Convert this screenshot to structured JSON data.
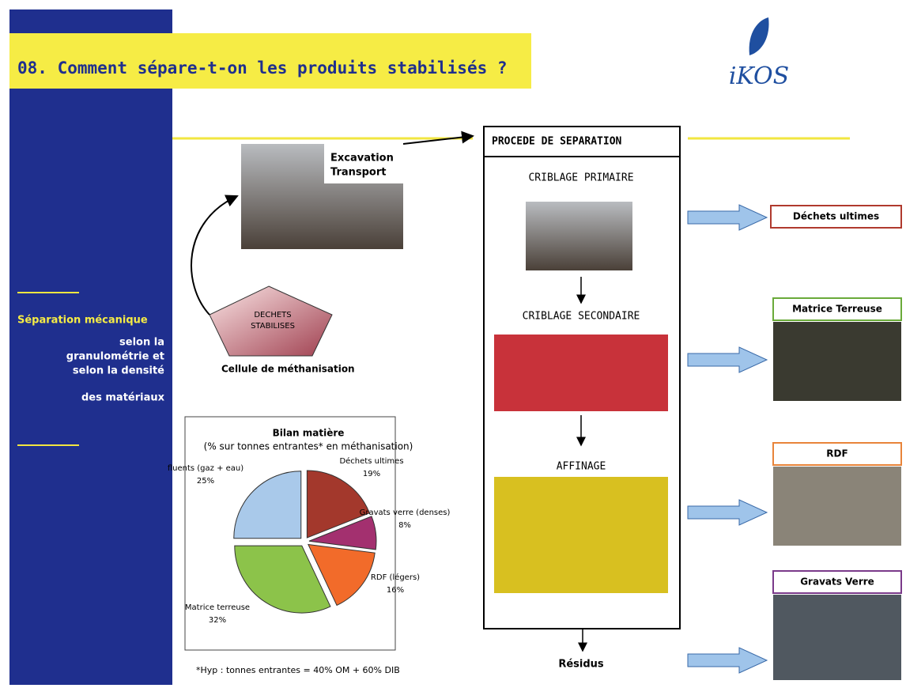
{
  "header": {
    "title": "08. Comment sépare-t-on les produits stabilisés ?",
    "logo": "iKOS"
  },
  "sidebar": {
    "heading": "Séparation mécanique",
    "lines": [
      "selon la",
      "granulométrie et",
      "selon la densité",
      "des matériaux"
    ]
  },
  "excavation": {
    "lines": [
      "Excavation",
      "Transport"
    ]
  },
  "pentagon": {
    "lines": [
      "DECHETS",
      "STABILISES"
    ]
  },
  "cell_label": "Cellule de méthanisation",
  "chart_data": {
    "type": "pie",
    "title": "Bilan matière",
    "subtitle": "(% sur tonnes entrantes* en méthanisation)",
    "categories": [
      "Déchets ultimes",
      "Gravats verre (denses)",
      "RDF (légers)",
      "Matrice terreuse",
      "fluents (gaz + eau)"
    ],
    "values": [
      19,
      8,
      16,
      32,
      25
    ],
    "value_labels": [
      "19%",
      "8%",
      "16%",
      "32%",
      "25%"
    ],
    "colors": [
      "#a3382c",
      "#a3306f",
      "#f26b2a",
      "#8cc34a",
      "#a9c9ea"
    ]
  },
  "footnote": "*Hyp : tonnes entrantes = 40% OM + 60% DIB",
  "process": {
    "title": "PROCEDE DE SEPARATION",
    "steps": [
      "CRIBLAGE PRIMAIRE",
      "CRIBLAGE SECONDAIRE",
      "AFFINAGE"
    ]
  },
  "residues": "Résidus",
  "outputs": [
    {
      "label": "Déchets ultimes",
      "color": "#b03a2e"
    },
    {
      "label": "Matrice Terreuse",
      "color": "#6aaa3a"
    },
    {
      "label": "RDF",
      "color": "#e8843a"
    },
    {
      "label": "Gravats Verre",
      "color": "#7a3a8a"
    }
  ]
}
